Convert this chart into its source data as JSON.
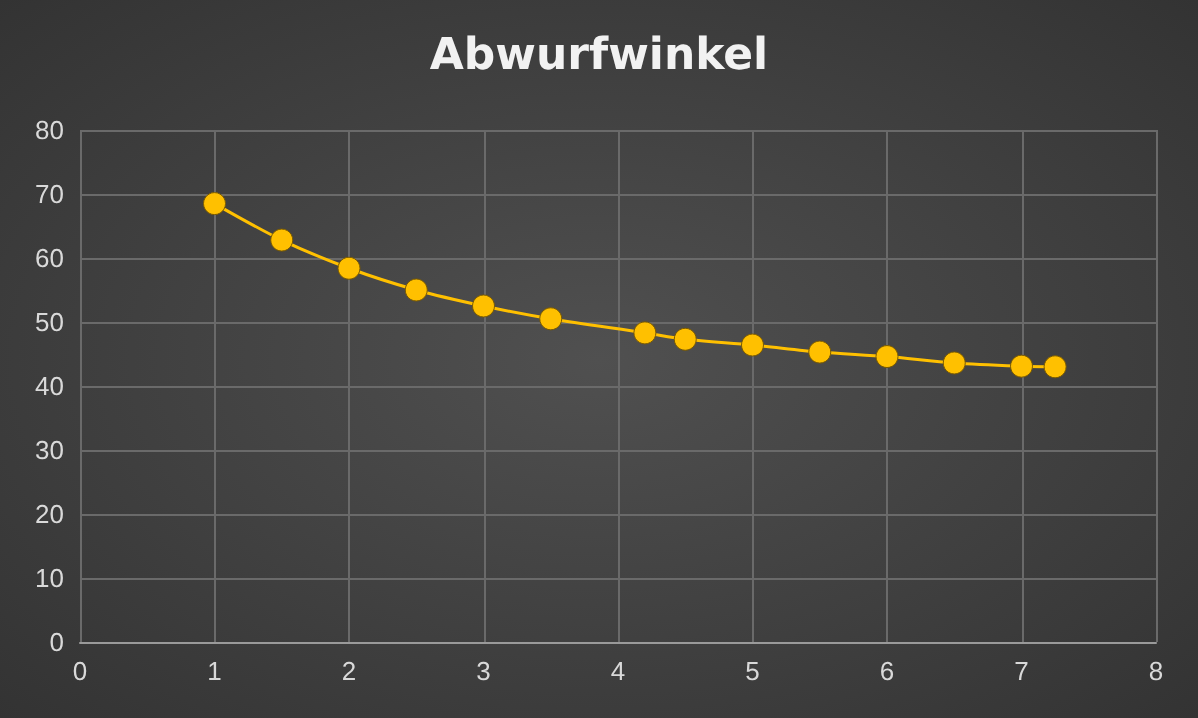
{
  "chart_data": {
    "type": "line",
    "title": "Abwurfwinkel",
    "x": [
      1,
      1.5,
      2,
      2.5,
      3,
      3.5,
      4.2,
      4.5,
      5,
      5.5,
      6,
      6.5,
      7,
      7.25
    ],
    "series": [
      {
        "color": "#ffc000",
        "values": [
          68.5,
          62.8,
          58.4,
          55,
          52.5,
          50.5,
          48.3,
          47.3,
          46.4,
          45.3,
          44.6,
          43.6,
          43.1,
          43
        ]
      }
    ],
    "xlim": [
      0,
      8
    ],
    "xticks": [
      0,
      1,
      2,
      3,
      4,
      5,
      6,
      7,
      8
    ],
    "ylim": [
      0,
      80
    ],
    "yticks": [
      0,
      10,
      20,
      30,
      40,
      50,
      60,
      70,
      80
    ],
    "grid": true,
    "marker": "circle",
    "line_style": "solid"
  }
}
